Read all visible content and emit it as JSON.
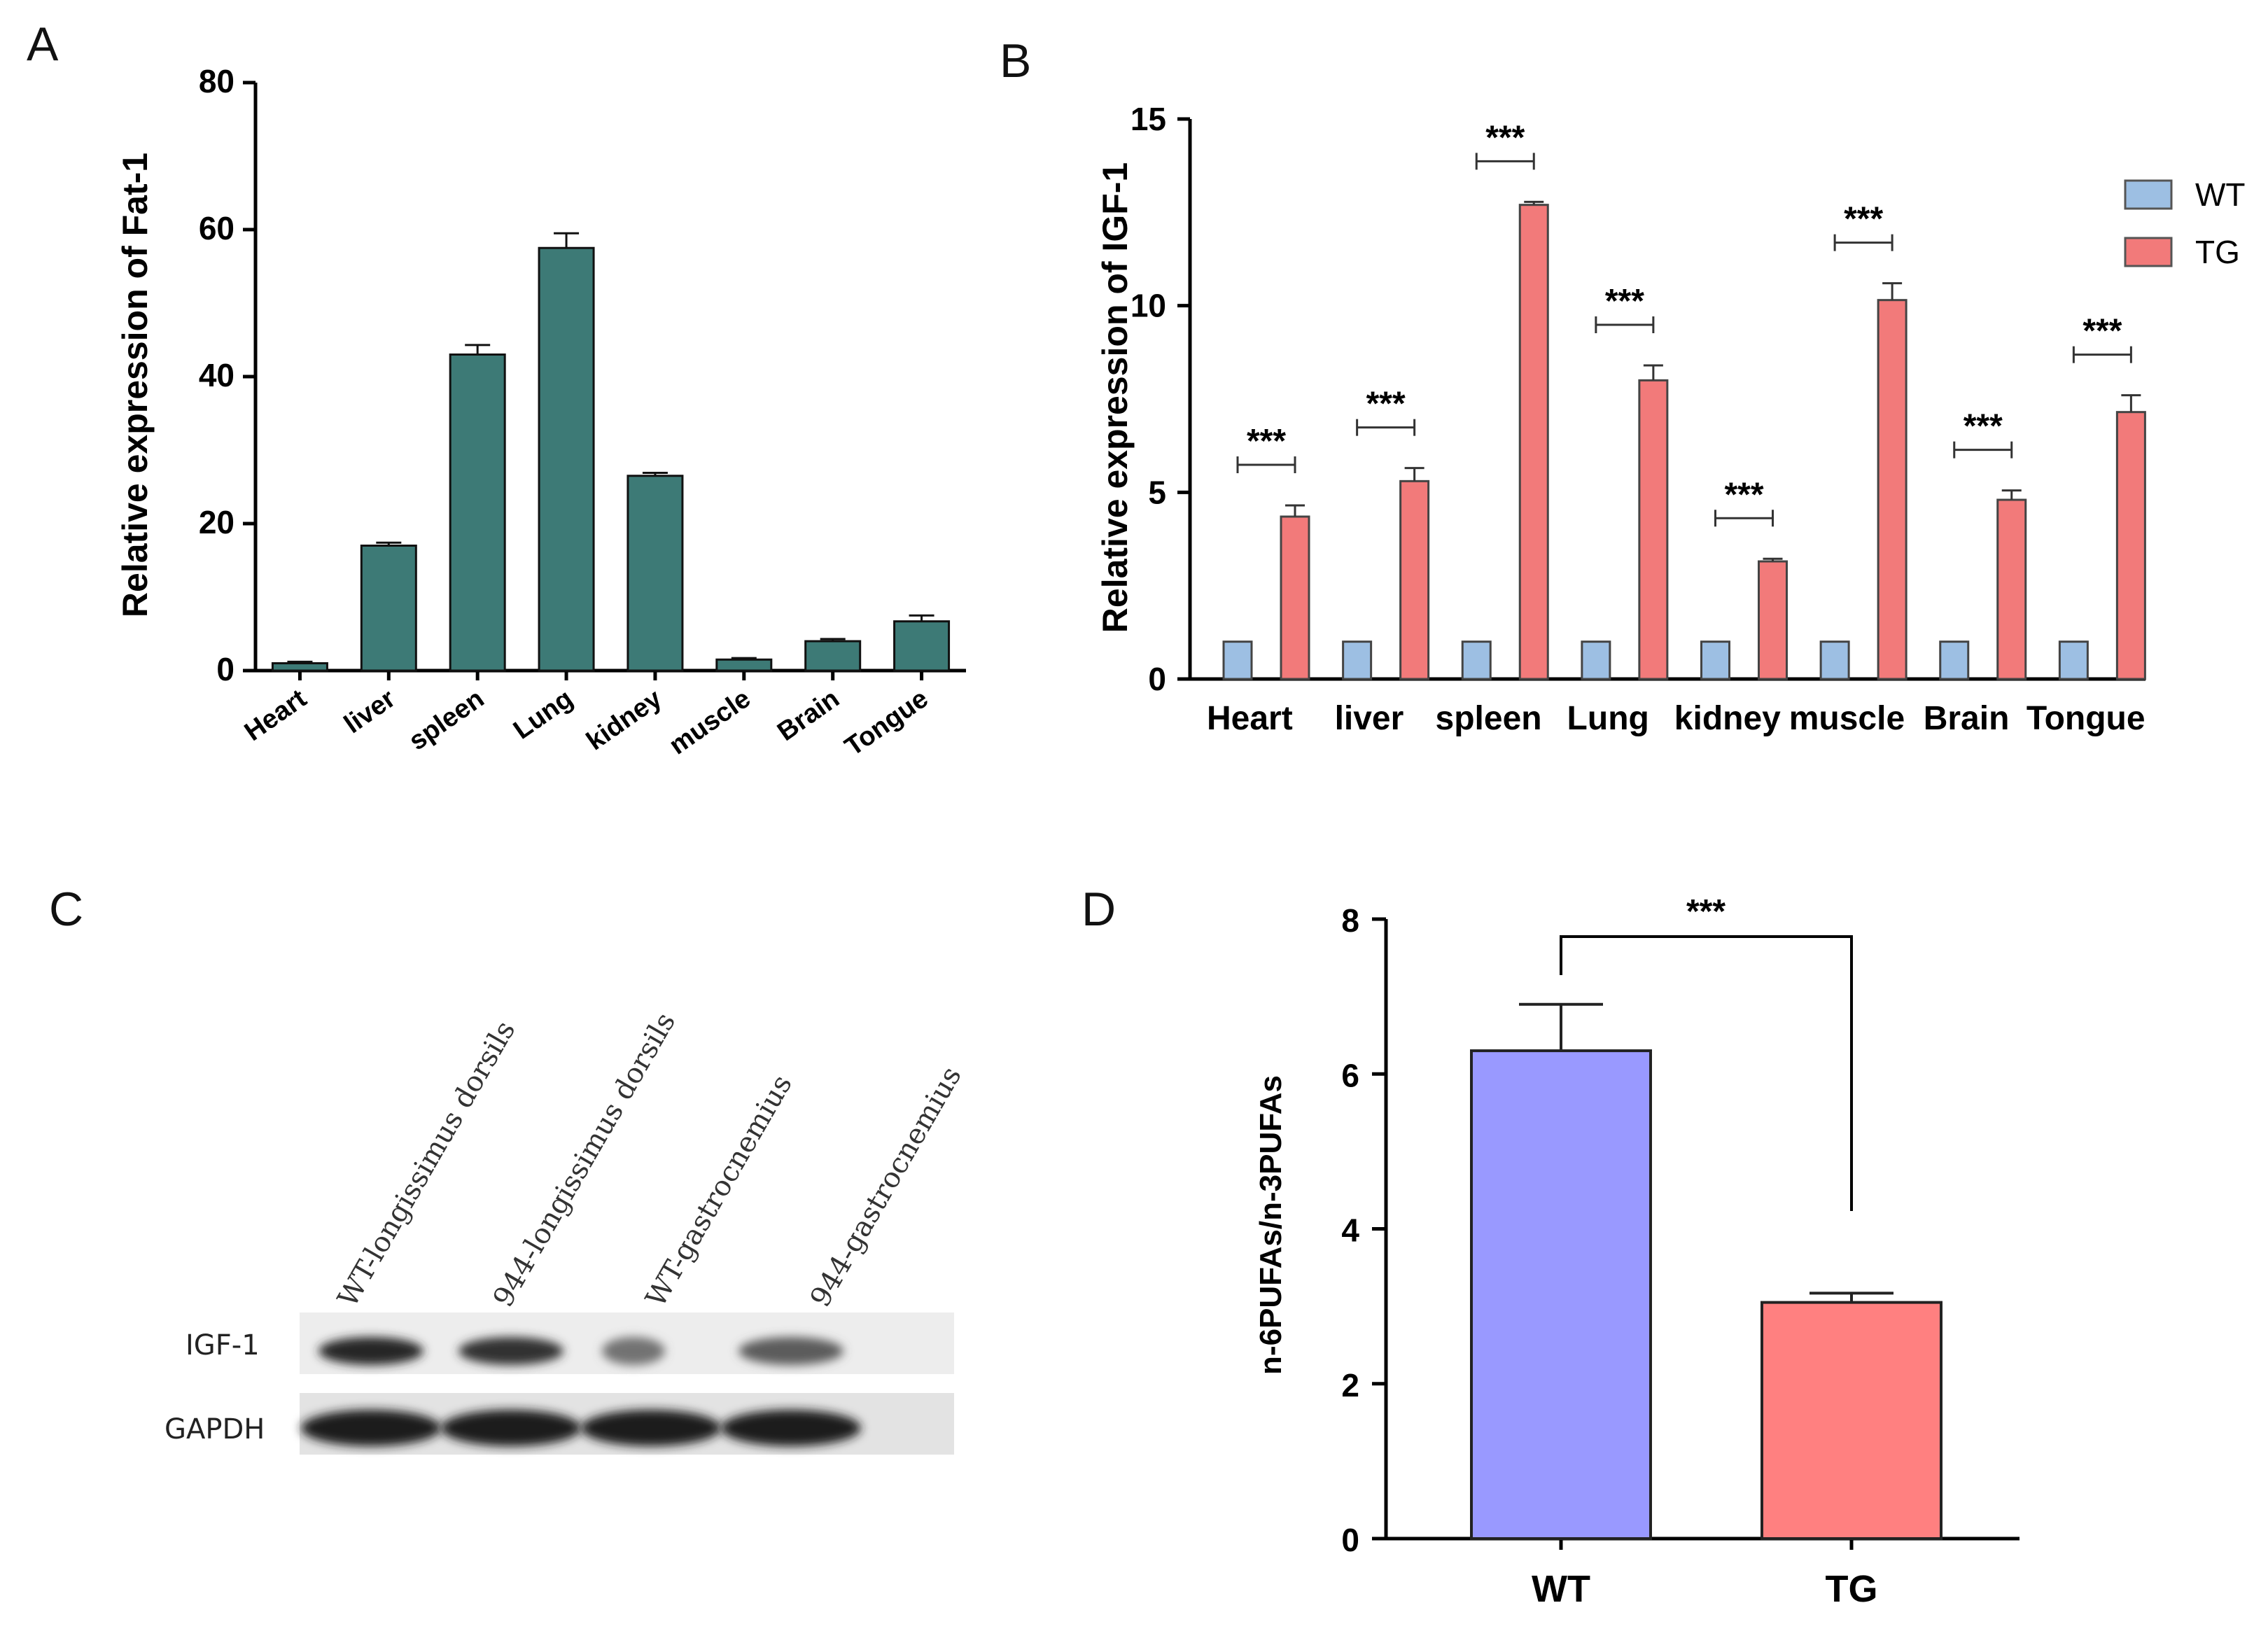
{
  "panels": {
    "a": "A",
    "b": "B",
    "c": "C",
    "d": "D"
  },
  "chart_data": [
    {
      "id": "A",
      "type": "bar",
      "title": "",
      "xlabel": "",
      "ylabel": "Relative expression of Fat-1",
      "ylim": [
        0,
        80
      ],
      "yticks": [
        0,
        20,
        40,
        60,
        80
      ],
      "categories": [
        "Heart",
        "liver",
        "spleen",
        "Lung",
        "kidney",
        "muscle",
        "Brain",
        "Tongue"
      ],
      "values": [
        1,
        17,
        43,
        57.5,
        26.5,
        1.5,
        4,
        6.7
      ],
      "errors": [
        0.2,
        0.4,
        1.3,
        2.0,
        0.4,
        0.2,
        0.3,
        0.8
      ],
      "color": "#3d7a76"
    },
    {
      "id": "B",
      "type": "bar",
      "title": "",
      "xlabel": "",
      "ylabel": "Relative expression of IGF-1",
      "ylim": [
        0,
        15
      ],
      "yticks": [
        0,
        5,
        10,
        15
      ],
      "categories": [
        "Heart",
        "liver",
        "spleen",
        "Lung",
        "kidney",
        "muscle",
        "Brain",
        "Tongue"
      ],
      "series": [
        {
          "name": "WT",
          "color": "#9dbfe3",
          "values": [
            1,
            1,
            1,
            1,
            1,
            1,
            1,
            1
          ],
          "errors": [
            0,
            0,
            0,
            0,
            0,
            0,
            0,
            0
          ]
        },
        {
          "name": "TG",
          "color": "#f27a7a",
          "values": [
            4.35,
            5.3,
            12.7,
            8.0,
            3.15,
            10.15,
            4.8,
            7.15
          ],
          "errors": [
            0.3,
            0.35,
            0.08,
            0.4,
            0.07,
            0.45,
            0.25,
            0.45
          ]
        }
      ],
      "significance": [
        "***",
        "***",
        "***",
        "***",
        "***",
        "***",
        "***",
        "***"
      ],
      "legend_position": "top-right"
    },
    {
      "id": "D",
      "type": "bar",
      "title": "",
      "xlabel": "",
      "ylabel": "n-6PUFAs/n-3PUFAs",
      "ylim": [
        0,
        8
      ],
      "yticks": [
        0,
        2,
        4,
        6,
        8
      ],
      "categories": [
        "WT",
        "TG"
      ],
      "values": [
        6.3,
        3.05
      ],
      "errors": [
        0.6,
        0.12
      ],
      "colors": [
        "#9999ff",
        "#ff8080"
      ],
      "significance": "***"
    }
  ],
  "western_blot": {
    "lanes": [
      "WT-longissimus dorsils",
      "944-longissimus dorsils",
      "WT-gastrocnemius",
      "944-gastrocnemius"
    ],
    "bands": [
      {
        "label": "IGF-1",
        "intensities": [
          0.9,
          0.85,
          0.55,
          0.65
        ]
      },
      {
        "label": "GAPDH",
        "intensities": [
          0.95,
          0.95,
          0.95,
          0.95
        ]
      }
    ]
  }
}
